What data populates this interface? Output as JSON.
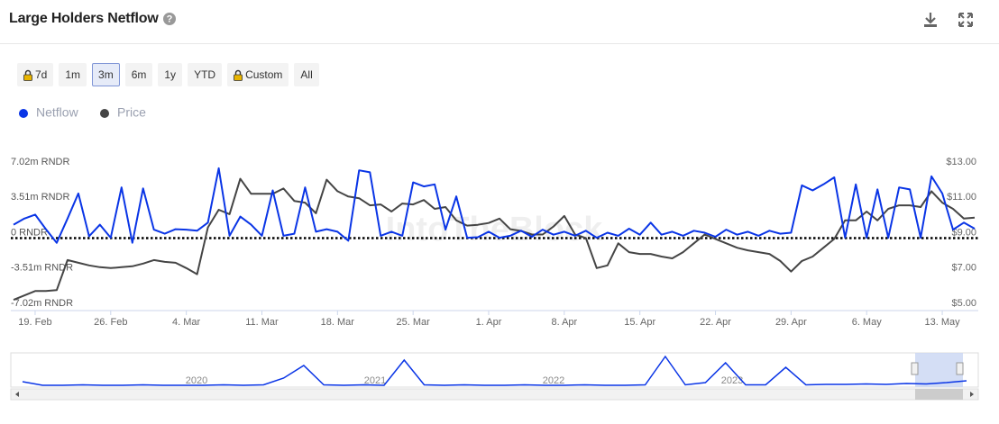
{
  "header": {
    "title": "Large Holders Netflow"
  },
  "range_buttons": [
    "7d",
    "1m",
    "3m",
    "6m",
    "1y",
    "YTD",
    "Custom",
    "All"
  ],
  "locked_buttons": [
    0,
    6
  ],
  "selected_range": 2,
  "chart_data": {
    "type": "line",
    "watermark": "IntoTheBlock",
    "x": [
      -2,
      -1,
      0,
      1,
      2,
      3,
      4,
      5,
      6,
      7,
      8,
      9,
      10,
      11,
      12,
      13,
      14,
      15,
      16,
      17,
      18,
      19,
      20,
      21,
      22,
      23,
      24,
      25,
      26,
      27,
      28,
      29,
      30,
      31,
      32,
      33,
      34,
      35,
      36,
      37,
      38,
      39,
      40,
      41,
      42,
      43,
      44,
      45,
      46,
      47,
      48,
      49,
      50,
      51,
      52,
      53,
      54,
      55,
      56,
      57,
      58,
      59,
      60,
      61,
      62,
      63,
      64,
      65,
      66,
      67,
      68,
      69,
      70,
      71,
      72,
      73,
      74,
      75,
      76,
      77,
      78,
      79,
      80,
      81,
      82,
      83,
      84,
      85,
      86,
      87
    ],
    "xlim": [
      -2,
      87
    ],
    "xticks": [
      {
        "value": 0,
        "label": "19. Feb"
      },
      {
        "value": 7,
        "label": "26. Feb"
      },
      {
        "value": 14,
        "label": "4. Mar"
      },
      {
        "value": 21,
        "label": "11. Mar"
      },
      {
        "value": 28,
        "label": "18. Mar"
      },
      {
        "value": 35,
        "label": "25. Mar"
      },
      {
        "value": 42,
        "label": "1. Apr"
      },
      {
        "value": 49,
        "label": "8. Apr"
      },
      {
        "value": 56,
        "label": "15. Apr"
      },
      {
        "value": 63,
        "label": "22. Apr"
      },
      {
        "value": 70,
        "label": "29. Apr"
      },
      {
        "value": 77,
        "label": "6. May"
      },
      {
        "value": 84,
        "label": "13. May"
      }
    ],
    "ylim": [
      -7.02,
      7.02
    ],
    "yticks": [
      {
        "value": 7.02,
        "label": "7.02m RNDR"
      },
      {
        "value": 3.51,
        "label": "3.51m RNDR"
      },
      {
        "value": 0,
        "label": "0 RNDR"
      },
      {
        "value": -3.51,
        "label": "-3.51m RNDR"
      },
      {
        "value": -7.02,
        "label": "-7.02m RNDR"
      }
    ],
    "y2lim": [
      5,
      13
    ],
    "y2ticks": [
      {
        "value": 13,
        "label": "$13.00"
      },
      {
        "value": 11,
        "label": "$11.00"
      },
      {
        "value": 9,
        "label": "$9.00"
      },
      {
        "value": 7,
        "label": "$7.00"
      },
      {
        "value": 5,
        "label": "$5.00"
      }
    ],
    "zero_line": true,
    "legend": "top-left",
    "series": [
      {
        "name": "Netflow",
        "color": "#0a35e6",
        "axis": "y",
        "values": [
          0.8,
          1.4,
          1.8,
          0.35,
          -1.0,
          1.4,
          3.9,
          -0.35,
          0.8,
          -0.5,
          4.5,
          -1.0,
          4.4,
          0.3,
          -0.1,
          0.35,
          0.3,
          0.2,
          1.0,
          6.4,
          -0.3,
          1.6,
          0.8,
          -0.3,
          4.2,
          -0.3,
          -0.1,
          4.5,
          0.1,
          0.35,
          0.1,
          -0.8,
          6.2,
          6.0,
          -0.3,
          0.1,
          -0.3,
          5.0,
          4.6,
          4.8,
          0.3,
          3.6,
          -0.5,
          -0.45,
          0.1,
          -0.5,
          -0.3,
          0.2,
          -0.4,
          0.3,
          -0.2,
          0.1,
          -0.3,
          0.2,
          -0.5,
          0.0,
          -0.3,
          0.4,
          -0.2,
          1.0,
          -0.2,
          0.1,
          -0.3,
          0.2,
          0.0,
          -0.4,
          0.3,
          -0.2,
          0.1,
          -0.3,
          0.2,
          -0.1,
          0.0,
          4.7,
          4.2,
          4.8,
          5.5,
          -0.5,
          4.8,
          -0.5,
          4.3,
          -0.5,
          4.5,
          4.3,
          -0.5,
          5.6,
          3.9,
          0.3,
          1.0,
          0.4
        ]
      },
      {
        "name": "Price",
        "color": "#454545",
        "axis": "y2",
        "values": [
          5.2,
          5.45,
          5.7,
          5.7,
          5.75,
          7.45,
          7.3,
          7.15,
          7.05,
          7.0,
          7.05,
          7.1,
          7.25,
          7.45,
          7.35,
          7.3,
          7.0,
          6.65,
          9.3,
          10.3,
          10.05,
          12.05,
          11.2,
          11.2,
          11.2,
          11.5,
          10.8,
          10.7,
          10.1,
          12.0,
          11.35,
          11.05,
          10.95,
          10.55,
          10.6,
          10.2,
          10.65,
          10.6,
          10.85,
          10.35,
          10.45,
          9.7,
          9.4,
          9.45,
          9.55,
          9.8,
          9.2,
          9.1,
          8.9,
          8.9,
          9.35,
          9.95,
          8.9,
          8.7,
          7.0,
          7.15,
          8.4,
          7.9,
          7.8,
          7.8,
          7.65,
          7.55,
          7.9,
          8.4,
          8.9,
          8.65,
          8.4,
          8.15,
          8.0,
          7.9,
          7.8,
          7.4,
          6.8,
          7.4,
          7.65,
          8.15,
          8.65,
          9.7,
          9.7,
          10.2,
          9.7,
          10.35,
          10.55,
          10.55,
          10.45,
          11.35,
          10.7,
          10.35,
          9.8,
          9.85
        ]
      }
    ],
    "navigator": {
      "labels": [
        "2020",
        "2021",
        "2022",
        "2023"
      ],
      "color": "#0a35e6",
      "ylim": [
        0,
        35
      ],
      "values": [
        4,
        0,
        0,
        0.5,
        0,
        0,
        0.5,
        0,
        0,
        0,
        0.5,
        0,
        0.5,
        8,
        22,
        0.5,
        0,
        0.5,
        0,
        28,
        0.5,
        0,
        0.5,
        0,
        0,
        0.5,
        0,
        0,
        0.5,
        0,
        0,
        0.5,
        32,
        0.5,
        3,
        25,
        0.5,
        0.5,
        20,
        0.5,
        1,
        1,
        1.5,
        1,
        2,
        1.5,
        3,
        5
      ]
    }
  }
}
